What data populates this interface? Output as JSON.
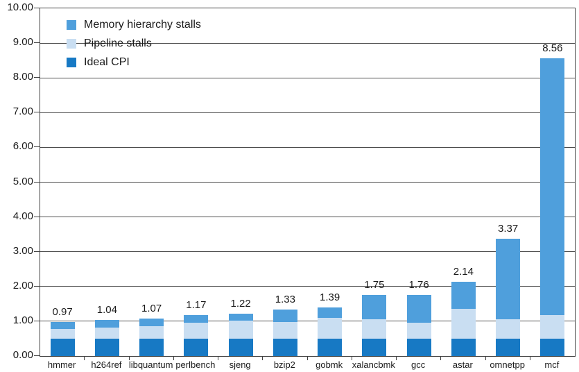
{
  "chart_data": {
    "type": "bar",
    "stacked": true,
    "categories": [
      "hmmer",
      "h264ref",
      "libquantum",
      "perlbench",
      "sjeng",
      "bzip2",
      "gobmk",
      "xalancbmk",
      "gcc",
      "astar",
      "omnetpp",
      "mcf"
    ],
    "series": [
      {
        "name": "Ideal CPI",
        "color": "#1779c4",
        "values": [
          0.5,
          0.5,
          0.5,
          0.5,
          0.5,
          0.5,
          0.5,
          0.5,
          0.5,
          0.5,
          0.5,
          0.5
        ]
      },
      {
        "name": "Pipeline stalls",
        "color": "#c9def2",
        "values": [
          0.28,
          0.32,
          0.36,
          0.46,
          0.52,
          0.48,
          0.59,
          0.56,
          0.46,
          0.86,
          0.55,
          0.67
        ]
      },
      {
        "name": "Memory hierarchy stalls",
        "color": "#4f9fdc",
        "values": [
          0.19,
          0.22,
          0.21,
          0.21,
          0.2,
          0.35,
          0.3,
          0.69,
          0.8,
          0.78,
          2.32,
          7.39
        ]
      }
    ],
    "totals": [
      "0.97",
      "1.04",
      "1.07",
      "1.17",
      "1.22",
      "1.33",
      "1.39",
      "1.75",
      "1.76",
      "2.14",
      "3.37",
      "8.56"
    ],
    "ylim": [
      0,
      10
    ],
    "ystep": 1,
    "ytick_labels": [
      "0.00",
      "1.00",
      "2.00",
      "3.00",
      "4.00",
      "5.00",
      "6.00",
      "7.00",
      "8.00",
      "9.00",
      "10.00"
    ],
    "xlabel": "",
    "ylabel": "",
    "title": "",
    "grid": true,
    "legend_position": "top-left",
    "legend_order": [
      "Memory hierarchy stalls",
      "Pipeline stalls",
      "Ideal CPI"
    ]
  },
  "colors": {
    "background": "#ffffff",
    "axis": "#404040",
    "gridline": "#4d4d4d",
    "text": "#1a1a1a"
  }
}
